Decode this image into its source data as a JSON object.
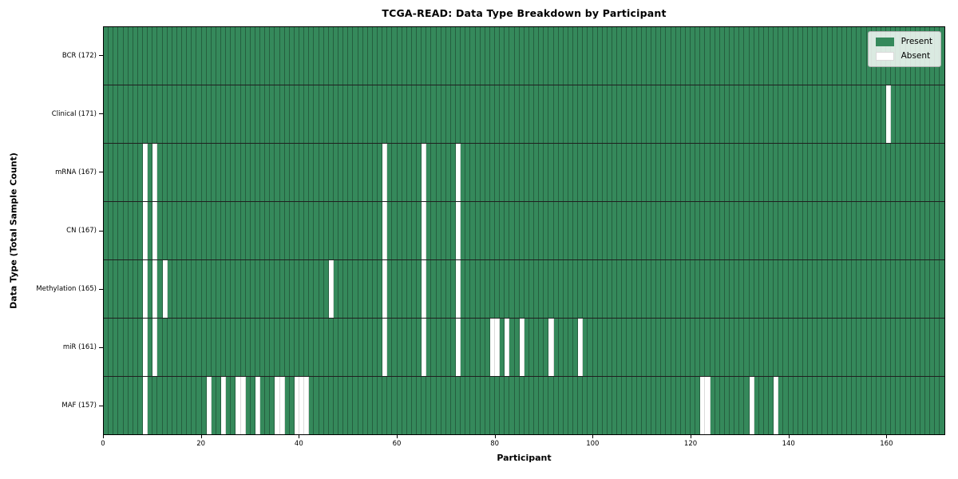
{
  "chart_data": {
    "type": "heatmap",
    "title": "TCGA-READ: Data Type Breakdown by Participant",
    "xlabel": "Participant",
    "ylabel": "Data Type (Total Sample Count)",
    "n_participants": 172,
    "x_ticks": [
      0,
      20,
      40,
      60,
      80,
      100,
      120,
      140,
      160
    ],
    "x_range": [
      0,
      172
    ],
    "grid": false,
    "legend_position": "upper right",
    "legend": [
      {
        "label": "Present",
        "color": "#35895b"
      },
      {
        "label": "Absent",
        "color": "#ffffff"
      }
    ],
    "cell_edge_color": "rgba(0,0,0,0.30)",
    "row_separator_color": "#1f1f1f",
    "rows": [
      {
        "label": "BCR",
        "total": 172,
        "tick_label": "BCR (172)",
        "absent_participants": []
      },
      {
        "label": "Clinical",
        "total": 171,
        "tick_label": "Clinical (171)",
        "absent_participants": [
          160
        ]
      },
      {
        "label": "mRNA",
        "total": 167,
        "tick_label": "mRNA (167)",
        "absent_participants": [
          8,
          10,
          57,
          65,
          72
        ]
      },
      {
        "label": "CN",
        "total": 167,
        "tick_label": "CN (167)",
        "absent_participants": [
          8,
          10,
          57,
          65,
          72
        ]
      },
      {
        "label": "Methylation",
        "total": 165,
        "tick_label": "Methylation (165)",
        "absent_participants": [
          8,
          10,
          12,
          46,
          57,
          65,
          72
        ]
      },
      {
        "label": "miR",
        "total": 161,
        "tick_label": "miR (161)",
        "absent_participants": [
          8,
          10,
          57,
          65,
          72,
          79,
          80,
          82,
          85,
          91,
          97
        ]
      },
      {
        "label": "MAF",
        "total": 157,
        "tick_label": "MAF (157)",
        "absent_participants": [
          8,
          21,
          24,
          27,
          28,
          31,
          35,
          36,
          39,
          40,
          41,
          122,
          123,
          132,
          137
        ]
      }
    ]
  }
}
